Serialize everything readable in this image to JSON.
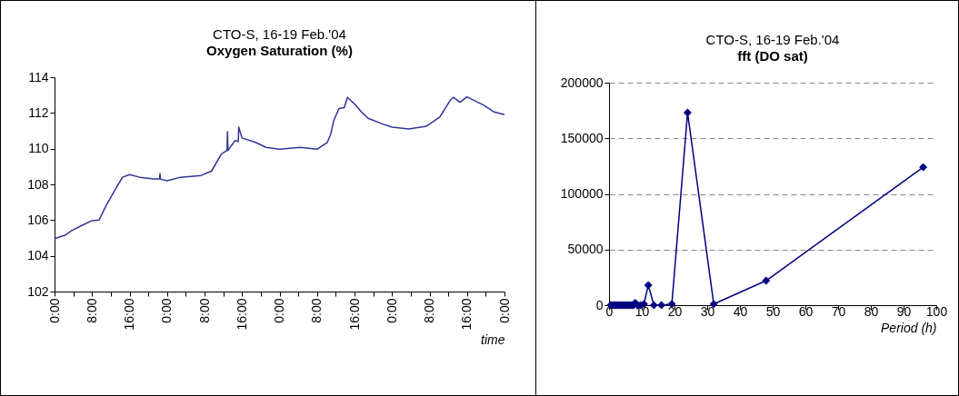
{
  "chart_data": [
    {
      "type": "line",
      "title": "CTO-S,  16-19 Feb.'04",
      "subtitle": "Oxygen Saturation (%)",
      "xlabel": "time",
      "marker": "none",
      "line_style": "solid",
      "grid": false,
      "x": [
        "2004-02-16T00:00",
        "2004-02-16T02:12",
        "2004-02-16T03:36",
        "2004-02-16T05:48",
        "2004-02-16T08:00",
        "2004-02-16T09:30",
        "2004-02-16T10:54",
        "2004-02-16T12:42",
        "2004-02-16T14:30",
        "2004-02-16T16:00",
        "2004-02-16T18:12",
        "2004-02-16T21:06",
        "2004-02-16T22:24",
        "2004-02-16T22:30",
        "2004-02-16T22:36",
        "2004-02-17T00:00",
        "2004-02-17T02:54",
        "2004-02-17T07:18",
        "2004-02-17T09:30",
        "2004-02-17T11:36",
        "2004-02-17T12:48",
        "2004-02-17T12:54",
        "2004-02-17T13:00",
        "2004-02-17T14:30",
        "2004-02-17T15:12",
        "2004-02-17T15:18",
        "2004-02-17T16:00",
        "2004-02-17T18:54",
        "2004-02-17T21:06",
        "2004-02-18T00:00",
        "2004-02-18T04:24",
        "2004-02-18T08:00",
        "2004-02-18T10:12",
        "2004-02-18T10:54",
        "2004-02-18T11:36",
        "2004-02-18T12:42",
        "2004-02-18T13:48",
        "2004-02-18T14:30",
        "2004-02-18T16:00",
        "2004-02-18T17:30",
        "2004-02-18T18:54",
        "2004-02-18T21:48",
        "2004-02-19T00:00",
        "2004-02-19T03:36",
        "2004-02-19T07:18",
        "2004-02-19T10:12",
        "2004-02-19T12:24",
        "2004-02-19T13:06",
        "2004-02-19T14:30",
        "2004-02-19T16:00",
        "2004-02-19T17:30",
        "2004-02-19T19:36",
        "2004-02-19T21:48",
        "2004-02-20T00:00"
      ],
      "series": [
        {
          "color": "#333399",
          "values": [
            104.96,
            105.15,
            105.4,
            105.7,
            105.97,
            106.0,
            106.76,
            107.6,
            108.4,
            108.55,
            108.4,
            108.3,
            108.3,
            108.6,
            108.3,
            108.2,
            108.4,
            108.5,
            108.75,
            109.7,
            109.9,
            110.95,
            109.9,
            110.45,
            110.4,
            111.2,
            110.6,
            110.35,
            110.07,
            109.97,
            110.07,
            109.97,
            110.35,
            110.8,
            111.6,
            112.25,
            112.3,
            112.87,
            112.5,
            112.05,
            111.7,
            111.4,
            111.2,
            111.1,
            111.25,
            111.77,
            112.7,
            112.87,
            112.6,
            112.9,
            112.7,
            112.43,
            112.05,
            111.9
          ]
        }
      ],
      "xlim": [
        "2004-02-16T00:00",
        "2004-02-20T00:00"
      ],
      "xticks": [
        {
          "value": "2004-02-16T00:00",
          "label": "0:00"
        },
        {
          "value": "2004-02-16T04:00",
          "label": null
        },
        {
          "value": "2004-02-16T08:00",
          "label": "8:00"
        },
        {
          "value": "2004-02-16T12:00",
          "label": null
        },
        {
          "value": "2004-02-16T16:00",
          "label": "16:00"
        },
        {
          "value": "2004-02-16T20:00",
          "label": null
        },
        {
          "value": "2004-02-17T00:00",
          "label": "0:00"
        },
        {
          "value": "2004-02-17T04:00",
          "label": null
        },
        {
          "value": "2004-02-17T08:00",
          "label": "8:00"
        },
        {
          "value": "2004-02-17T12:00",
          "label": null
        },
        {
          "value": "2004-02-17T16:00",
          "label": "16:00"
        },
        {
          "value": "2004-02-17T20:00",
          "label": null
        },
        {
          "value": "2004-02-18T00:00",
          "label": "0:00"
        },
        {
          "value": "2004-02-18T04:00",
          "label": null
        },
        {
          "value": "2004-02-18T08:00",
          "label": "8:00"
        },
        {
          "value": "2004-02-18T12:00",
          "label": null
        },
        {
          "value": "2004-02-18T16:00",
          "label": "16:00"
        },
        {
          "value": "2004-02-18T20:00",
          "label": null
        },
        {
          "value": "2004-02-19T00:00",
          "label": "0:00"
        },
        {
          "value": "2004-02-19T04:00",
          "label": null
        },
        {
          "value": "2004-02-19T08:00",
          "label": "8:00"
        },
        {
          "value": "2004-02-19T12:00",
          "label": null
        },
        {
          "value": "2004-02-19T16:00",
          "label": "16:00"
        },
        {
          "value": "2004-02-19T20:00",
          "label": null
        },
        {
          "value": "2004-02-20T00:00",
          "label": "0:00"
        }
      ],
      "ylim": [
        102,
        114
      ],
      "yticks": [
        102,
        104,
        106,
        108,
        110,
        112,
        114
      ]
    },
    {
      "type": "line",
      "title": "CTO-S,  16-19 Feb.'04",
      "subtitle": "fft (DO sat)",
      "xlabel": "Period (h)",
      "marker": "diamond",
      "line_style": "solid",
      "grid": "y",
      "x": [
        0.5,
        1,
        1.5,
        2,
        2.5,
        3,
        3.5,
        4,
        4.5,
        5,
        5.5,
        6,
        6.5,
        7,
        7.5,
        8,
        8.75,
        9.6,
        10.67,
        12,
        13.71,
        16,
        19.2,
        24,
        32,
        48,
        96
      ],
      "series": [
        {
          "color": "#000080",
          "values": [
            0,
            0,
            0,
            0,
            0,
            0,
            0,
            0,
            0,
            0,
            0,
            0,
            0,
            0,
            0,
            2000,
            0,
            0,
            1000,
            18000,
            0,
            0,
            1000,
            173000,
            1000,
            22000,
            124000
          ]
        }
      ],
      "xlim": [
        0,
        100
      ],
      "xticks": [
        0,
        10,
        20,
        30,
        40,
        50,
        60,
        70,
        80,
        90,
        100
      ],
      "ylim": [
        0,
        200000
      ],
      "yticks": [
        0,
        50000,
        100000,
        150000,
        200000
      ]
    }
  ]
}
